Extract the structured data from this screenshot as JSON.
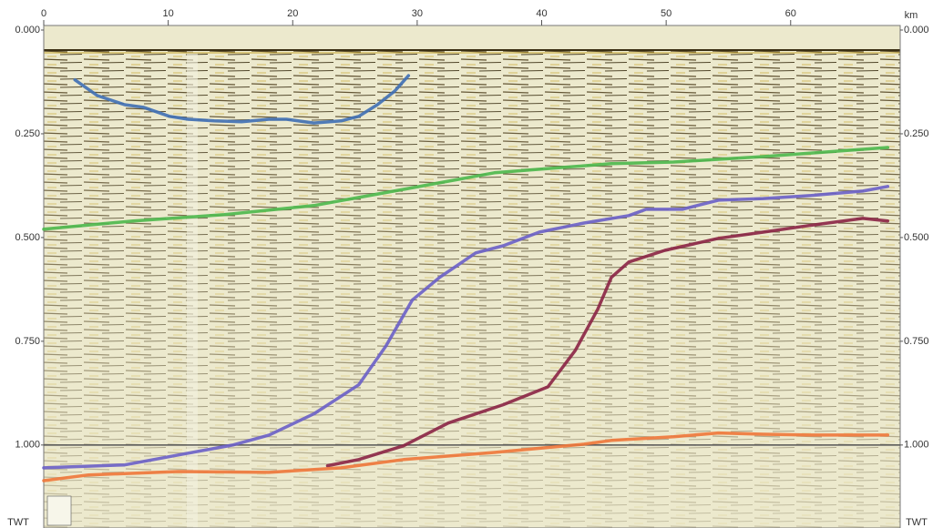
{
  "chart_data": {
    "type": "line",
    "xlabel": "km",
    "ylabel": "TWT",
    "xlim": [
      0,
      68.8
    ],
    "ylim": [
      0,
      1.2
    ],
    "y_inverted": true,
    "xticks": [
      0,
      10,
      20,
      30,
      40,
      50,
      60
    ],
    "yticks": [
      {
        "value": 0,
        "label": "0.000"
      },
      {
        "value": 0.25,
        "label": "0.250"
      },
      {
        "value": 0.5,
        "label": "0.500"
      },
      {
        "value": 0.75,
        "label": "0.750"
      },
      {
        "value": 1,
        "label": "1.000"
      }
    ],
    "hline": 1,
    "series": [
      {
        "color": "#3f6fb5",
        "x": [
          2.5,
          4.3,
          6.5,
          8.0,
          10.1,
          11.6,
          13.7,
          15.9,
          18.1,
          19.5,
          21.7,
          23.9,
          25.3,
          26.8,
          28.2,
          29.3
        ],
        "values": [
          0.12,
          0.158,
          0.18,
          0.186,
          0.208,
          0.215,
          0.219,
          0.221,
          0.215,
          0.215,
          0.224,
          0.219,
          0.208,
          0.18,
          0.147,
          0.11
        ]
      },
      {
        "color": "#4cb84c",
        "x": [
          0,
          7.2,
          14.5,
          21.7,
          28.9,
          36.2,
          43.4,
          45.6,
          50.6,
          57.8,
          67.8
        ],
        "values": [
          0.48,
          0.46,
          0.445,
          0.423,
          0.384,
          0.344,
          0.327,
          0.322,
          0.318,
          0.305,
          0.283
        ]
      },
      {
        "color": "#6a5fc8",
        "x": [
          0,
          6.5,
          10.8,
          15.2,
          18.1,
          21.7,
          25.3,
          27.5,
          29.6,
          31.8,
          34.7,
          36.9,
          39.8,
          43.4,
          47.0,
          48.4,
          51.3,
          54.2,
          57.8,
          61.5,
          65.8,
          67.8
        ],
        "values": [
          1.055,
          1.048,
          1.024,
          1.0,
          0.976,
          0.925,
          0.855,
          0.761,
          0.651,
          0.596,
          0.537,
          0.52,
          0.487,
          0.465,
          0.447,
          0.432,
          0.432,
          0.41,
          0.406,
          0.399,
          0.388,
          0.377
        ]
      },
      {
        "color": "#8b2445",
        "x": [
          22.8,
          25.3,
          28.9,
          32.5,
          36.9,
          40.5,
          42.7,
          44.5,
          45.6,
          47.0,
          49.9,
          54.2,
          57.8,
          61.5,
          65.8,
          67.8
        ],
        "values": [
          1.05,
          1.035,
          1.002,
          0.947,
          0.903,
          0.86,
          0.772,
          0.673,
          0.596,
          0.559,
          0.531,
          0.502,
          0.487,
          0.471,
          0.454,
          0.46
        ]
      },
      {
        "color": "#f0773a",
        "x": [
          0,
          3.6,
          10.8,
          18.1,
          23.9,
          28.9,
          36.2,
          43.4,
          45.6,
          50.6,
          54.2,
          57.8,
          61.5,
          65.8,
          67.8
        ],
        "values": [
          1.086,
          1.072,
          1.064,
          1.066,
          1.055,
          1.035,
          1.018,
          0.998,
          0.989,
          0.98,
          0.971,
          0.974,
          0.976,
          0.976,
          0.976
        ]
      }
    ]
  }
}
